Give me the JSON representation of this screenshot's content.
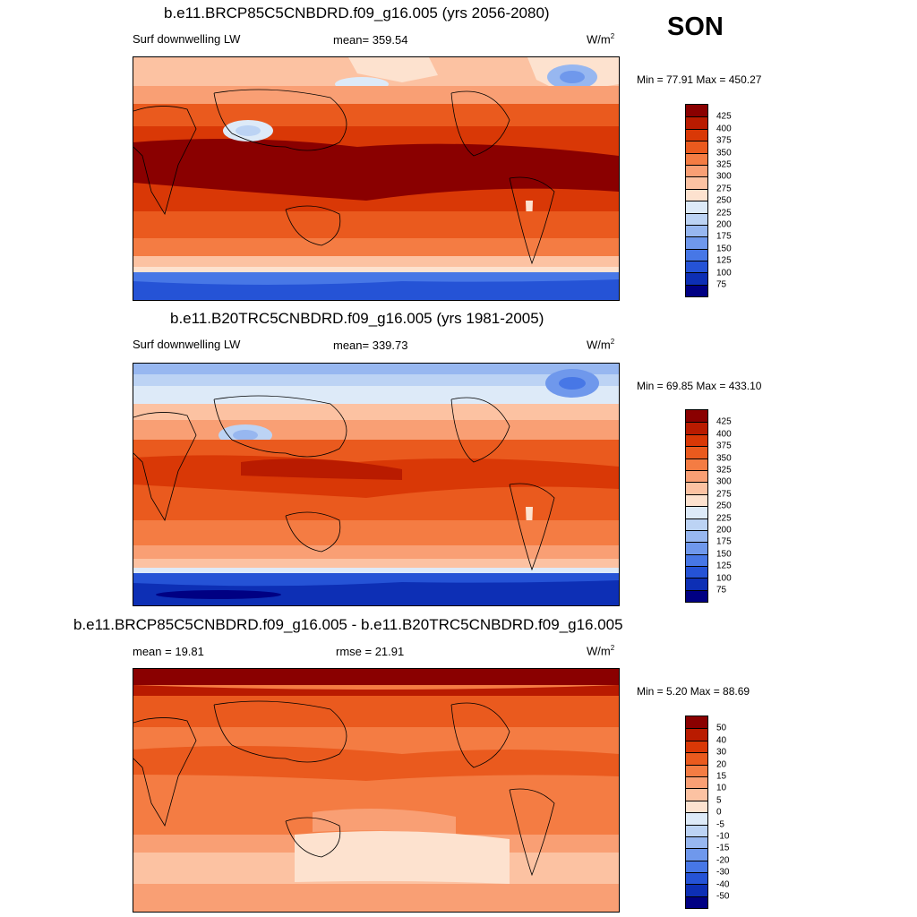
{
  "season": "SON",
  "colors": {
    "warm": [
      "#8a0000",
      "#b91b00",
      "#d93806",
      "#ea5a1e",
      "#f47c43",
      "#f99f74",
      "#fcc2a2",
      "#fde2cf"
    ],
    "cool": [
      "#ddeaf8",
      "#bcd3f4",
      "#97b7f0",
      "#6f98ec",
      "#4777e6",
      "#2553d6",
      "#0d2fb5",
      "#000083"
    ]
  },
  "panels": [
    {
      "title": "b.e11.BRCP85C5CNBDRD.f09_g16.005 (yrs 2056-2080)",
      "left_label": "Surf downwelling LW",
      "mean_text": "mean= 359.54",
      "units": "W/m",
      "units_sup": "2",
      "minmax": "Min =  77.91 Max = 450.27",
      "colorbar_labels": [
        "425",
        "400",
        "375",
        "350",
        "325",
        "300",
        "275",
        "250",
        "225",
        "200",
        "175",
        "150",
        "125",
        "100",
        "75"
      ],
      "colorbar_colors": [
        "#8a0000",
        "#b91b00",
        "#d93806",
        "#ea5a1e",
        "#f47c43",
        "#f99f74",
        "#fcc2a2",
        "#fde2cf",
        "#ddeaf8",
        "#bcd3f4",
        "#97b7f0",
        "#6f98ec",
        "#4777e6",
        "#2553d6",
        "#0d2fb5",
        "#000083"
      ]
    },
    {
      "title": "b.e11.B20TRC5CNBDRD.f09_g16.005 (yrs 1981-2005)",
      "left_label": "Surf downwelling LW",
      "mean_text": "mean= 339.73",
      "units": "W/m",
      "units_sup": "2",
      "minmax": "Min =  69.85 Max = 433.10",
      "colorbar_labels": [
        "425",
        "400",
        "375",
        "350",
        "325",
        "300",
        "275",
        "250",
        "225",
        "200",
        "175",
        "150",
        "125",
        "100",
        "75"
      ],
      "colorbar_colors": [
        "#8a0000",
        "#b91b00",
        "#d93806",
        "#ea5a1e",
        "#f47c43",
        "#f99f74",
        "#fcc2a2",
        "#fde2cf",
        "#ddeaf8",
        "#bcd3f4",
        "#97b7f0",
        "#6f98ec",
        "#4777e6",
        "#2553d6",
        "#0d2fb5",
        "#000083"
      ]
    },
    {
      "title": "b.e11.BRCP85C5CNBDRD.f09_g16.005 - b.e11.B20TRC5CNBDRD.f09_g16.005",
      "left_label": "mean =  19.81",
      "mean_text": "rmse =  21.91",
      "units": "W/m",
      "units_sup": "2",
      "minmax": "Min =   5.20 Max =  88.69",
      "colorbar_labels": [
        "50",
        "40",
        "30",
        "20",
        "15",
        "10",
        "5",
        "0",
        "-5",
        "-10",
        "-15",
        "-20",
        "-30",
        "-40",
        "-50"
      ],
      "colorbar_colors": [
        "#8a0000",
        "#b91b00",
        "#d93806",
        "#ea5a1e",
        "#f47c43",
        "#f99f74",
        "#fcc2a2",
        "#fde2cf",
        "#ddeaf8",
        "#bcd3f4",
        "#97b7f0",
        "#6f98ec",
        "#4777e6",
        "#2553d6",
        "#0d2fb5",
        "#000083"
      ]
    }
  ]
}
